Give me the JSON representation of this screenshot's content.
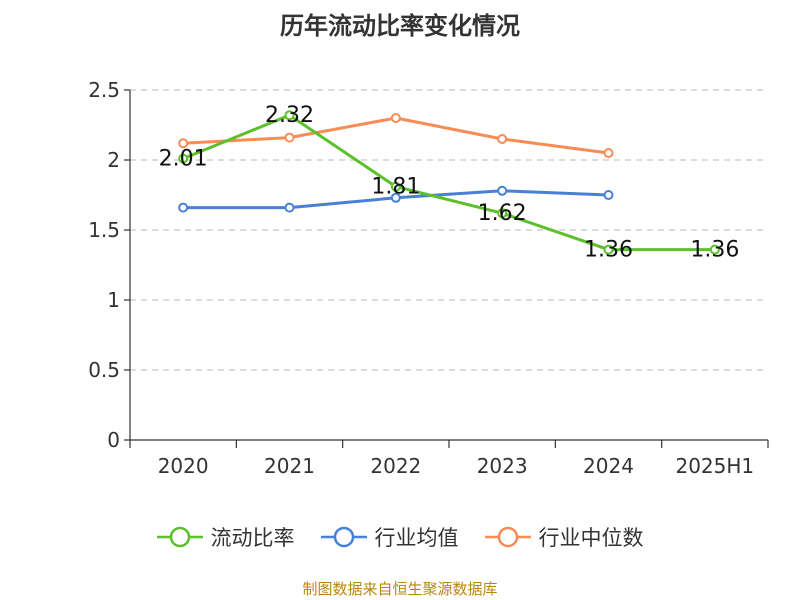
{
  "title": "历年流动比率变化情况",
  "footer": "制图数据来自恒生聚源数据库",
  "chart_data": {
    "type": "line",
    "categories": [
      "2020",
      "2021",
      "2022",
      "2023",
      "2024",
      "2025H1"
    ],
    "ylim": [
      0,
      2.5
    ],
    "yticks": [
      "0",
      "0.5",
      "1",
      "1.5",
      "2",
      "2.5"
    ],
    "ytick_values": [
      0,
      0.5,
      1,
      1.5,
      2,
      2.5
    ],
    "grid": "horizontal-dashed",
    "legend_position": "bottom",
    "series": [
      {
        "name": "流动比率",
        "color": "#5bc02a",
        "values": [
          2.01,
          2.32,
          1.81,
          1.62,
          1.36,
          1.36
        ],
        "labels": [
          "2.01",
          "2.32",
          "1.81",
          "1.62",
          "1.36",
          "1.36"
        ]
      },
      {
        "name": "行业均值",
        "color": "#4a7fd8",
        "values": [
          1.66,
          1.66,
          1.73,
          1.78,
          1.75,
          null
        ]
      },
      {
        "name": "行业中位数",
        "color": "#f78c54",
        "values": [
          2.12,
          2.16,
          2.3,
          2.15,
          2.05,
          null
        ]
      }
    ]
  }
}
